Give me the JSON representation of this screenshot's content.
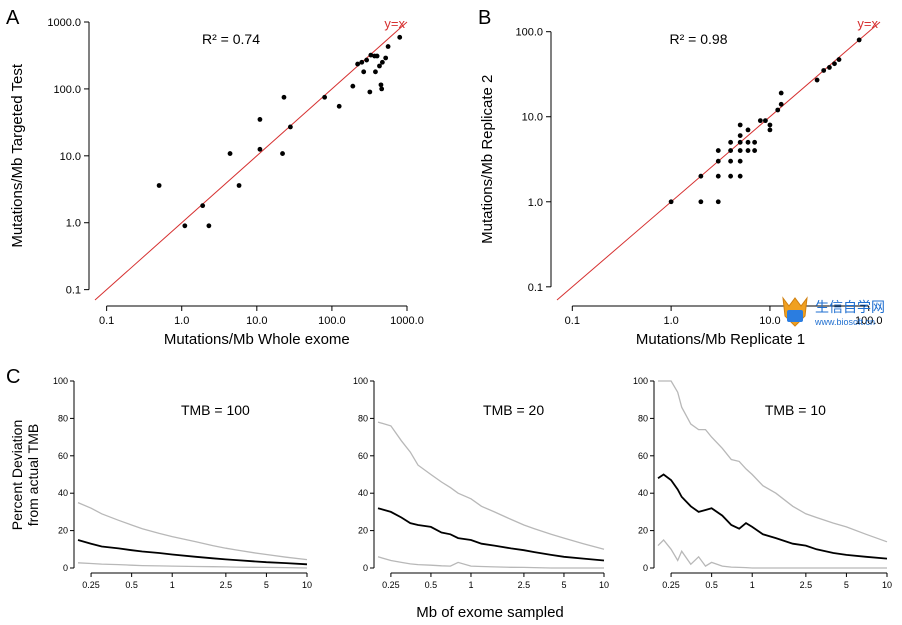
{
  "panel_letters": {
    "A": "A",
    "B": "B",
    "C": "C"
  },
  "colors": {
    "points": "#000000",
    "identity_line": "#d63030",
    "band": "#b8b8b8",
    "median": "#000000",
    "axis": "#000000"
  },
  "watermark": {
    "text": "生信自学网",
    "url": "www.biosoft.cn"
  },
  "chart_data": [
    {
      "id": "A",
      "type": "scatter",
      "xlabel": "Mutations/Mb Whole exome",
      "ylabel": "Mutations/Mb Targeted Test",
      "xscale": "log",
      "yscale": "log",
      "xlim": [
        0.07,
        1000
      ],
      "ylim": [
        0.07,
        1000
      ],
      "xticks": [
        0.1,
        1,
        10,
        100,
        1000
      ],
      "xtick_labels": [
        "0.1",
        "1.0",
        "10.0",
        "100.0",
        "1000.0"
      ],
      "yticks": [
        0.1,
        1,
        10,
        100,
        1000
      ],
      "ytick_labels": [
        "0.1",
        "1.0",
        "10.0",
        "100.0",
        "1000.0"
      ],
      "annotation": "R² = 0.74",
      "identity_label": "y=x",
      "points": [
        [
          0.5,
          3.6
        ],
        [
          1.1,
          0.9
        ],
        [
          1.9,
          1.8
        ],
        [
          2.3,
          0.9
        ],
        [
          4.4,
          10.8
        ],
        [
          5.8,
          3.6
        ],
        [
          11,
          12.5
        ],
        [
          11,
          35
        ],
        [
          22,
          10.8
        ],
        [
          23,
          75
        ],
        [
          28,
          27
        ],
        [
          80,
          75
        ],
        [
          125,
          55
        ],
        [
          190,
          110
        ],
        [
          220,
          235
        ],
        [
          250,
          250
        ],
        [
          265,
          180
        ],
        [
          290,
          270
        ],
        [
          320,
          90
        ],
        [
          330,
          320
        ],
        [
          370,
          310
        ],
        [
          400,
          310
        ],
        [
          430,
          220
        ],
        [
          450,
          115
        ],
        [
          460,
          100
        ],
        [
          470,
          250
        ],
        [
          520,
          290
        ],
        [
          560,
          430
        ],
        [
          800,
          590
        ],
        [
          380,
          180
        ]
      ]
    },
    {
      "id": "B",
      "type": "scatter",
      "xlabel": "Mutations/Mb Replicate 1",
      "ylabel": "Mutations/Mb Replicate 2",
      "xscale": "log",
      "yscale": "log",
      "xlim": [
        0.07,
        130
      ],
      "ylim": [
        0.07,
        130
      ],
      "xticks": [
        0.1,
        1,
        10,
        100
      ],
      "xtick_labels": [
        "0.1",
        "1.0",
        "10.0",
        "100.0"
      ],
      "yticks": [
        0.1,
        1,
        10,
        100
      ],
      "ytick_labels": [
        "0.1",
        "1.0",
        "10.0",
        "100.0"
      ],
      "annotation": "R² = 0.98",
      "identity_label": "y=x",
      "points": [
        [
          1,
          1
        ],
        [
          2,
          1
        ],
        [
          2,
          2
        ],
        [
          3,
          1
        ],
        [
          3,
          2
        ],
        [
          3,
          3
        ],
        [
          3,
          4
        ],
        [
          4,
          2
        ],
        [
          4,
          3
        ],
        [
          4,
          4
        ],
        [
          4,
          5
        ],
        [
          5,
          2
        ],
        [
          5,
          3
        ],
        [
          5,
          4
        ],
        [
          5,
          5
        ],
        [
          5,
          6
        ],
        [
          5,
          8
        ],
        [
          6,
          4
        ],
        [
          6,
          5
        ],
        [
          6,
          7
        ],
        [
          7,
          4
        ],
        [
          7,
          5
        ],
        [
          8,
          9
        ],
        [
          9,
          9
        ],
        [
          10,
          7
        ],
        [
          10,
          8
        ],
        [
          12,
          12
        ],
        [
          13,
          14
        ],
        [
          13,
          19
        ],
        [
          30,
          27
        ],
        [
          35,
          35
        ],
        [
          40,
          38
        ],
        [
          45,
          42
        ],
        [
          50,
          47
        ],
        [
          80,
          80
        ]
      ]
    },
    {
      "id": "C",
      "type": "line",
      "xlabel": "Mb of exome sampled",
      "ylabel": [
        "Percent Deviation",
        "from actual TMB"
      ],
      "xscale": "log",
      "xlim": [
        0.2,
        10
      ],
      "xticks": [
        0.25,
        0.5,
        1,
        2.5,
        5,
        10
      ],
      "xtick_labels": [
        "0.25",
        "0.5",
        "1",
        "2.5",
        "5",
        "10"
      ],
      "ylim": [
        0,
        100
      ],
      "yticks": [
        0,
        20,
        40,
        60,
        80,
        100
      ],
      "ytick_labels": [
        "0",
        "20",
        "40",
        "60",
        "80",
        "100"
      ],
      "panels": [
        {
          "title": "TMB = 100",
          "x": [
            0.2,
            0.25,
            0.3,
            0.4,
            0.5,
            0.6,
            0.8,
            1,
            1.5,
            2,
            2.5,
            3,
            4,
            5,
            7,
            10
          ],
          "median": [
            15,
            13,
            11.5,
            10.5,
            9.5,
            8.8,
            8,
            7.2,
            6,
            5.2,
            4.6,
            4.2,
            3.6,
            3.1,
            2.6,
            2
          ],
          "upper": [
            35,
            32,
            29,
            25.5,
            23,
            21,
            18.5,
            16.8,
            14,
            12,
            10.6,
            9.6,
            8.2,
            7.2,
            5.8,
            4.5
          ],
          "lower": [
            2.8,
            2.4,
            2.1,
            1.8,
            1.5,
            1.3,
            1.1,
            1,
            0.8,
            0.7,
            0.6,
            0.5,
            0.4,
            0.3,
            0.2,
            0
          ]
        },
        {
          "title": "TMB = 20",
          "x": [
            0.2,
            0.25,
            0.3,
            0.35,
            0.4,
            0.5,
            0.6,
            0.7,
            0.8,
            1,
            1.2,
            1.5,
            2,
            2.5,
            3,
            4,
            5,
            7,
            10
          ],
          "median": [
            32,
            30,
            27,
            24,
            23,
            22,
            19,
            18,
            16,
            15,
            13,
            12,
            10.5,
            9.5,
            8.5,
            7,
            6,
            5,
            4
          ],
          "upper": [
            78,
            76,
            68,
            62,
            55,
            50,
            46,
            43,
            40,
            37,
            33,
            30,
            26,
            23,
            21,
            18,
            16,
            13,
            10
          ],
          "lower": [
            6,
            4,
            3,
            2.2,
            1.8,
            1.5,
            1.2,
            1,
            3,
            1,
            0.8,
            0.6,
            0.4,
            0.3,
            0.2,
            0,
            0,
            0,
            0
          ]
        },
        {
          "title": "TMB = 10",
          "x": [
            0.2,
            0.22,
            0.25,
            0.28,
            0.3,
            0.35,
            0.4,
            0.45,
            0.5,
            0.6,
            0.7,
            0.8,
            0.9,
            1,
            1.2,
            1.5,
            2,
            2.5,
            3,
            4,
            5,
            7,
            10
          ],
          "median": [
            48,
            50,
            47,
            42,
            38,
            33,
            30,
            31,
            32,
            28,
            23,
            21,
            24,
            22,
            18,
            16,
            13,
            12,
            10,
            8,
            7,
            6,
            5
          ],
          "upper": [
            100,
            100,
            100,
            94,
            86,
            77,
            74,
            74,
            70,
            64,
            58,
            57,
            53,
            50,
            44,
            40,
            33,
            29,
            27,
            24,
            22,
            18,
            14
          ],
          "lower": [
            12,
            15,
            10,
            4,
            9,
            2,
            6,
            1,
            3,
            1,
            0.5,
            0.3,
            0.2,
            0,
            0,
            0,
            0,
            0,
            0,
            0,
            0,
            0,
            0
          ]
        }
      ]
    }
  ]
}
